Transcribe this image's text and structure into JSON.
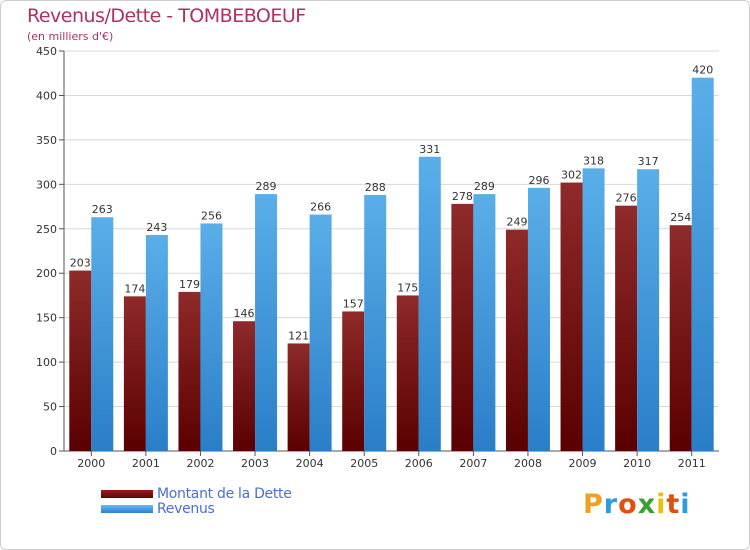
{
  "title": "Revenus/Dette - TOMBEBOEUF",
  "subtitle": "(en milliers d'€)",
  "colors": {
    "dette": "#7a1010",
    "revenus": "#4aa0e6",
    "title": "#b03060",
    "legend_text": "#4a6fd0"
  },
  "chart_data": {
    "type": "bar",
    "title": "Revenus/Dette - TOMBEBOEUF",
    "ylabel": "(en milliers d'€)",
    "xlabel": "",
    "ylim": [
      0,
      450
    ],
    "yticks": [
      0,
      50,
      100,
      150,
      200,
      250,
      300,
      350,
      400,
      450
    ],
    "grid": true,
    "legend_position": "bottom-left",
    "categories": [
      "2000",
      "2001",
      "2002",
      "2003",
      "2004",
      "2005",
      "2006",
      "2007",
      "2008",
      "2009",
      "2010",
      "2011"
    ],
    "series": [
      {
        "name": "Montant de la Dette",
        "key": "dette",
        "values": [
          203,
          174,
          179,
          146,
          121,
          157,
          175,
          278,
          249,
          302,
          276,
          254
        ]
      },
      {
        "name": "Revenus",
        "key": "revenus",
        "values": [
          263,
          243,
          256,
          289,
          266,
          288,
          331,
          289,
          296,
          318,
          317,
          420
        ]
      }
    ]
  },
  "legend": {
    "items": [
      "Montant de la Dette",
      "Revenus"
    ]
  },
  "logo": {
    "letters": [
      "P",
      "r",
      "o",
      "x",
      "i",
      "t",
      "i"
    ],
    "colors": [
      "#f0a020",
      "#2a9de0",
      "#e05010",
      "#3aa030",
      "#e8c010",
      "#e05010",
      "#2a9de0"
    ]
  }
}
